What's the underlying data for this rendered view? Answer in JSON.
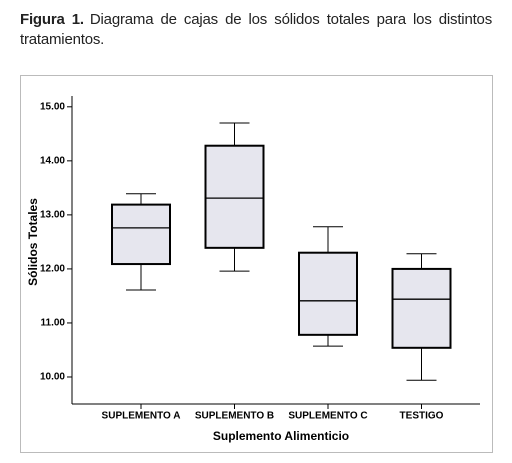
{
  "chart_data": {
    "type": "box",
    "caption_label": "Figura 1.",
    "caption": "Diagrama de cajas de los sólidos totales para los distintos tratamientos.",
    "x_label": "Suplemento Alimenticio",
    "y_label": "Sólidos Totales",
    "categories": [
      "SUPLEMENTO A",
      "SUPLEMENTO B",
      "SUPLEMENTO C",
      "TESTIGO"
    ],
    "min": [
      11.61,
      11.96,
      10.57,
      9.94
    ],
    "q1": [
      12.09,
      12.39,
      10.78,
      10.54
    ],
    "median": [
      12.76,
      13.31,
      11.41,
      11.44
    ],
    "q3": [
      13.19,
      14.28,
      12.3,
      12.0
    ],
    "max": [
      13.39,
      14.7,
      12.78,
      12.28
    ],
    "color": "#e6e6ee",
    "ylim": [
      9.5,
      15.2
    ],
    "yticks": [
      {
        "value": 10,
        "label": "10.00"
      },
      {
        "value": 11,
        "label": "11.00"
      },
      {
        "value": 12,
        "label": "12.00"
      },
      {
        "value": 13,
        "label": "13.00"
      },
      {
        "value": 14,
        "label": "14.00"
      },
      {
        "value": 15,
        "label": "15.00"
      }
    ]
  }
}
